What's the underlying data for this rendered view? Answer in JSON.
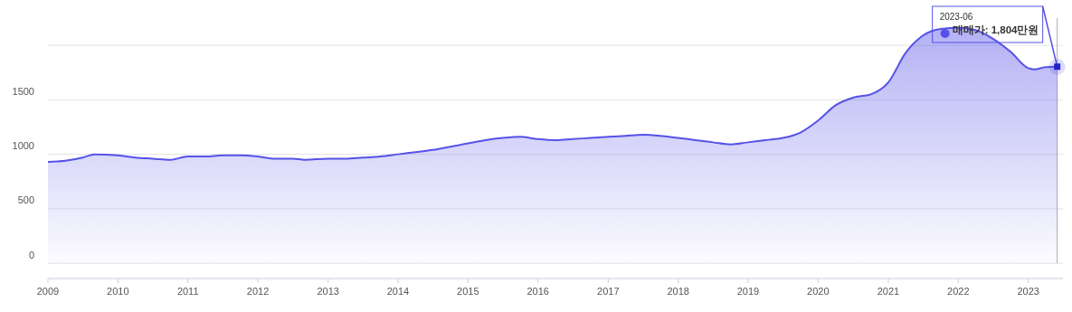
{
  "chart_data": {
    "type": "area",
    "x": [
      "2009-01",
      "2009-04",
      "2009-07",
      "2009-09",
      "2010-01",
      "2010-04",
      "2010-07",
      "2010-10",
      "2011-01",
      "2011-04",
      "2011-07",
      "2011-10",
      "2012-01",
      "2012-04",
      "2012-07",
      "2012-09",
      "2013-01",
      "2013-04",
      "2013-07",
      "2013-10",
      "2014-01",
      "2014-04",
      "2014-07",
      "2014-10",
      "2015-01",
      "2015-04",
      "2015-07",
      "2015-10",
      "2016-01",
      "2016-04",
      "2016-07",
      "2016-10",
      "2017-01",
      "2017-04",
      "2017-07",
      "2017-10",
      "2018-01",
      "2018-04",
      "2018-07",
      "2018-10",
      "2019-01",
      "2019-04",
      "2019-07",
      "2019-10",
      "2020-01",
      "2020-04",
      "2020-07",
      "2020-10",
      "2021-01",
      "2021-04",
      "2021-07",
      "2021-10",
      "2022-01",
      "2022-04",
      "2022-07",
      "2022-10",
      "2023-01",
      "2023-02",
      "2023-04",
      "2023-06"
    ],
    "series": [
      {
        "color": "#5552e8",
        "values": [
          930,
          940,
          970,
          1000,
          990,
          970,
          960,
          950,
          980,
          980,
          990,
          990,
          980,
          960,
          960,
          950,
          960,
          960,
          970,
          980,
          1000,
          1020,
          1040,
          1070,
          1100,
          1130,
          1150,
          1160,
          1140,
          1130,
          1140,
          1150,
          1160,
          1170,
          1180,
          1170,
          1150,
          1130,
          1110,
          1090,
          1110,
          1130,
          1150,
          1200,
          1310,
          1450,
          1520,
          1550,
          1660,
          1930,
          2090,
          2150,
          2160,
          2140,
          2060,
          1940,
          1790,
          1780,
          1800,
          1804
        ]
      }
    ],
    "ref_lines": [
      {
        "axis": "x",
        "value": "2023-06",
        "color": "#999999"
      }
    ],
    "xlim": [
      "2009-01",
      "2023-07"
    ],
    "xticks": [
      "2009",
      "2010",
      "2011",
      "2012",
      "2013",
      "2014",
      "2015",
      "2016",
      "2017",
      "2018",
      "2019",
      "2020",
      "2021",
      "2022",
      "2023"
    ],
    "ylim": [
      -140,
      2250
    ],
    "yticks": [
      0,
      500,
      1000,
      1500,
      {
        "value": 2000,
        "label": null
      }
    ],
    "grid": "y",
    "marker": "none",
    "line_style": "solid",
    "annotations": [
      {
        "text": "2023-06\n매매가: 1,804만원",
        "x": "2023-06",
        "y": 1804
      }
    ]
  }
}
